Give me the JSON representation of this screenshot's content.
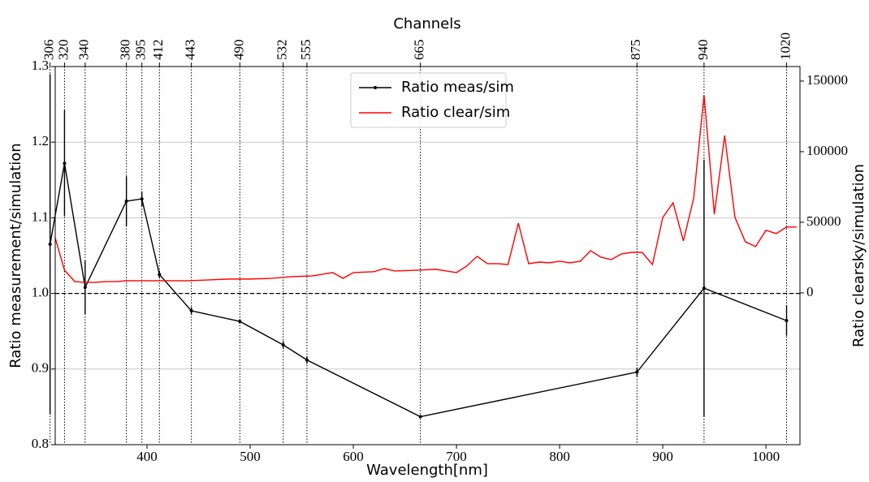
{
  "chart_data": {
    "type": "line",
    "xlabel": "Wavelength[nm]",
    "ylabel": "Ratio measurement/simulation",
    "y2label": "Ratio clearsky/simulation",
    "top_axis_label": "Channels",
    "top_ticks": [
      306,
      320,
      340,
      380,
      395,
      412,
      443,
      490,
      532,
      555,
      665,
      875,
      940,
      1020
    ],
    "xlim": [
      311,
      1033
    ],
    "xticks": [
      400,
      500,
      600,
      700,
      800,
      900,
      1000
    ],
    "ylim": [
      0.8,
      1.3
    ],
    "yticks": [
      0.8,
      0.9,
      {
        "value": 1,
        "label": "1.0"
      },
      1.1,
      1.2,
      1.3
    ],
    "y2lim": [
      -107500,
      160300
    ],
    "y2ticks": [
      0,
      50000,
      100000,
      150000
    ],
    "reference_line": 1,
    "grid": true,
    "legend": "upper center",
    "series": [
      {
        "name": "Ratio meas/sim",
        "color": "#000000",
        "axis": "y",
        "x": [
          306,
          320,
          340,
          380,
          395,
          412,
          443,
          490,
          532,
          555,
          665,
          875,
          940,
          1020
        ],
        "values": [
          1.065,
          1.172,
          1.008,
          1.122,
          1.125,
          1.025,
          0.977,
          0.963,
          0.932,
          0.912,
          0.837,
          0.896,
          1.007,
          0.964
        ],
        "errors": [
          0.225,
          0.07,
          0.035,
          0.033,
          0.01,
          0.005,
          0.005,
          0.003,
          0.005,
          0.005,
          0.002,
          0.006,
          0.17,
          0.02
        ]
      },
      {
        "name": "Ratio clear/sim",
        "color": "#ff0000",
        "axis": "y2",
        "x": [
          311,
          320,
          330,
          340,
          350,
          360,
          370,
          380,
          390,
          400,
          420,
          440,
          460,
          480,
          500,
          520,
          540,
          560,
          570,
          580,
          590,
          600,
          620,
          630,
          640,
          660,
          680,
          690,
          700,
          710,
          720,
          730,
          740,
          750,
          760,
          770,
          780,
          790,
          800,
          810,
          820,
          830,
          840,
          850,
          860,
          870,
          880,
          890,
          900,
          910,
          920,
          930,
          940,
          950,
          960,
          970,
          980,
          990,
          1000,
          1010,
          1020,
          1030
        ],
        "values": [
          39000,
          16000,
          8000,
          7500,
          7500,
          8000,
          8000,
          8600,
          8600,
          8600,
          8600,
          8600,
          9200,
          9800,
          9800,
          10300,
          11500,
          12000,
          13200,
          14400,
          10300,
          14400,
          15000,
          17200,
          15500,
          16000,
          16700,
          15500,
          14400,
          19000,
          25900,
          20700,
          20700,
          20100,
          49400,
          20700,
          21800,
          21300,
          22400,
          21300,
          22400,
          29900,
          25300,
          23600,
          27600,
          28700,
          28700,
          20100,
          53400,
          63800,
          36800,
          67200,
          140200,
          55700,
          111500,
          53400,
          36200,
          32800,
          44300,
          42000,
          46600,
          46600
        ]
      }
    ]
  }
}
